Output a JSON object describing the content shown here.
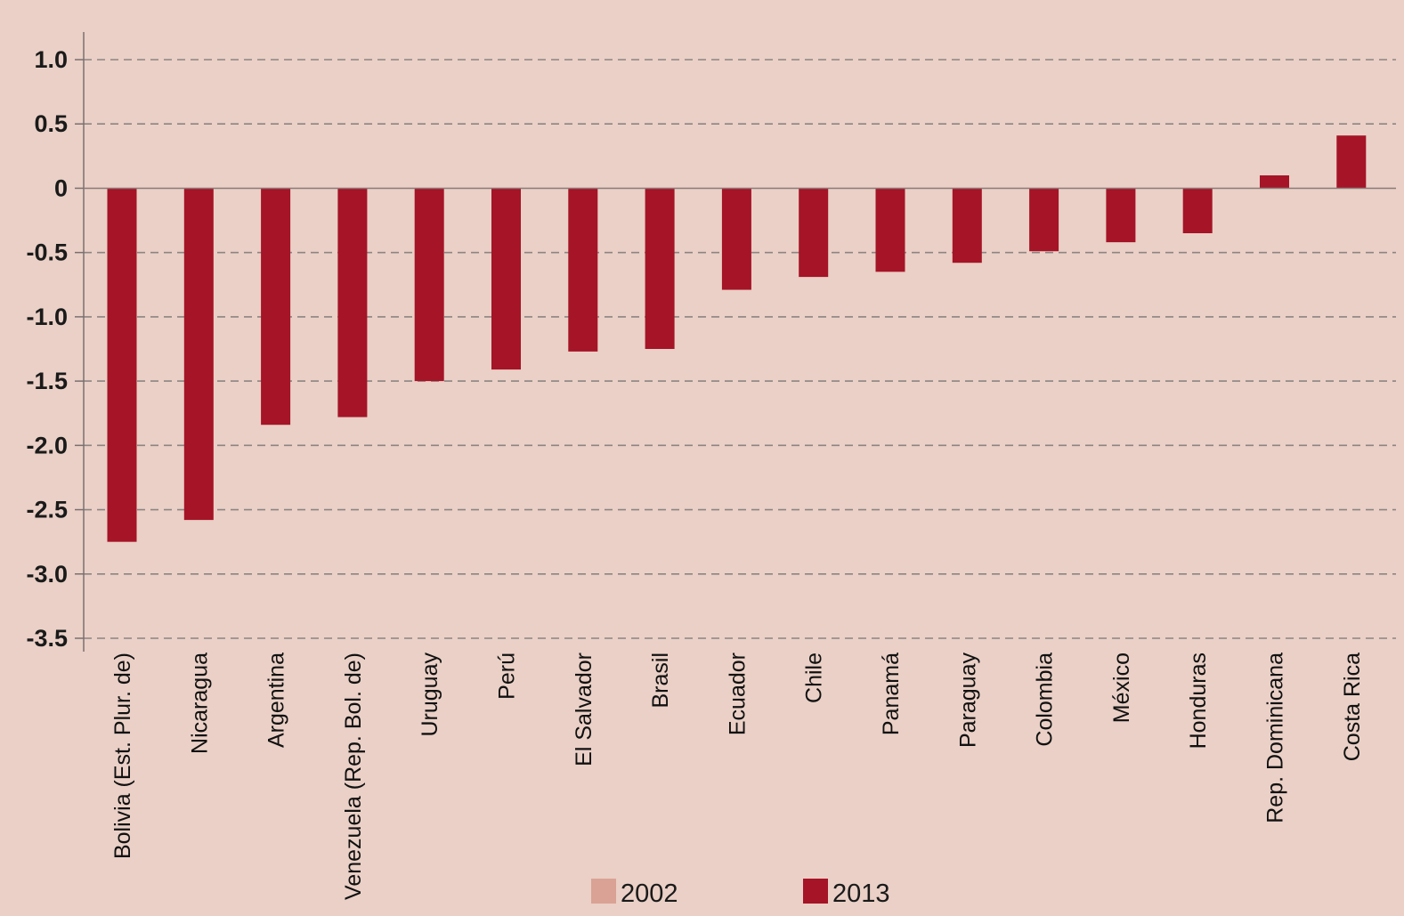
{
  "chart_data": {
    "type": "bar",
    "title": "",
    "xlabel": "",
    "ylabel": "",
    "ylim": [
      -3.5,
      1.0
    ],
    "yticks": [
      1.0,
      0.5,
      0,
      -0.5,
      -1.0,
      -1.5,
      -2.0,
      -2.5,
      -3.0,
      -3.5
    ],
    "ytick_labels": [
      "1.0",
      "0.5",
      "0",
      "-0.5",
      "-1.0",
      "-1.5",
      "-2.0",
      "-2.5",
      "-3.0",
      "-3.5"
    ],
    "grid": true,
    "categories": [
      "Bolivia (Est. Plur. de)",
      "Nicaragua",
      "Argentina",
      "Venezuela (Rep. Bol. de)",
      "Uruguay",
      "Perú",
      "El Salvador",
      "Brasil",
      "Ecuador",
      "Chile",
      "Panamá",
      "Paraguay",
      "Colombia",
      "México",
      "Honduras",
      "Rep. Dominicana",
      "Costa Rica"
    ],
    "series": [
      {
        "name": "2002",
        "color": "#d9a295",
        "values": [
          null,
          null,
          null,
          null,
          null,
          null,
          null,
          null,
          null,
          null,
          null,
          null,
          null,
          null,
          null,
          null,
          null
        ]
      },
      {
        "name": "2013",
        "color": "#a51427",
        "values": [
          -2.75,
          -2.58,
          -1.84,
          -1.78,
          -1.5,
          -1.41,
          -1.27,
          -1.25,
          -0.79,
          -0.69,
          -0.65,
          -0.58,
          -0.49,
          -0.42,
          -0.35,
          0.1,
          0.41
        ]
      }
    ],
    "legend": {
      "position": "bottom-center",
      "items": [
        "2002",
        "2013"
      ]
    }
  }
}
